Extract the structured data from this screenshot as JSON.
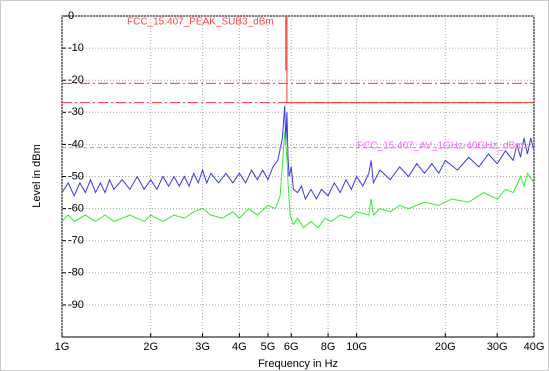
{
  "chart_data": {
    "type": "line",
    "xlabel": "Frequency in Hz",
    "ylabel": "Level in dBm",
    "xscale": "log",
    "grid": true,
    "xlim": [
      1000000000.0,
      40000000000.0
    ],
    "ylim": [
      -100,
      0
    ],
    "xticks": [
      {
        "value": 1000000000.0,
        "label": "1G"
      },
      {
        "value": 2000000000.0,
        "label": "2G"
      },
      {
        "value": 3000000000.0,
        "label": "3G"
      },
      {
        "value": 4000000000.0,
        "label": "4G"
      },
      {
        "value": 5000000000.0,
        "label": "5G"
      },
      {
        "value": 6000000000.0,
        "label": "6G"
      },
      {
        "value": 8000000000.0,
        "label": "8G"
      },
      {
        "value": 10000000000.0,
        "label": "10G"
      },
      {
        "value": 20000000000.0,
        "label": "20G"
      },
      {
        "value": 30000000000.0,
        "label": "30G"
      },
      {
        "value": 40000000000.0,
        "label": "40G"
      }
    ],
    "yticks": [
      0,
      -10,
      -20,
      -30,
      -40,
      -50,
      -60,
      -70,
      -80,
      -90
    ],
    "annotations": [
      {
        "text": "FCC_15.407_PEAK_SUB3_dBm",
        "color": "#ff4444"
      },
      {
        "text": "FCC_15.407_AV_1GHz-40GHz_dBm",
        "color": "#ff66ff"
      }
    ],
    "series": [
      {
        "color": "#3a3ae0",
        "dash": "solid",
        "x": [
          1000000000.0,
          1050000000.0,
          1100000000.0,
          1150000000.0,
          1200000000.0,
          1250000000.0,
          1300000000.0,
          1350000000.0,
          1400000000.0,
          1450000000.0,
          1500000000.0,
          1600000000.0,
          1700000000.0,
          1800000000.0,
          1900000000.0,
          2000000000.0,
          2100000000.0,
          2200000000.0,
          2300000000.0,
          2400000000.0,
          2500000000.0,
          2600000000.0,
          2700000000.0,
          2800000000.0,
          2900000000.0,
          3000000000.0,
          3100000000.0,
          3200000000.0,
          3400000000.0,
          3600000000.0,
          3800000000.0,
          4000000000.0,
          4200000000.0,
          4400000000.0,
          4600000000.0,
          4800000000.0,
          5000000000.0,
          5200000000.0,
          5400000000.0,
          5600000000.0,
          5700000000.0,
          5750000000.0,
          5800000000.0,
          5850000000.0,
          5900000000.0,
          6000000000.0,
          6100000000.0,
          6300000000.0,
          6500000000.0,
          6700000000.0,
          7000000000.0,
          7300000000.0,
          7600000000.0,
          8000000000.0,
          8400000000.0,
          8800000000.0,
          9200000000.0,
          9600000000.0,
          10000000000.0,
          10500000000.0,
          11000000000.0,
          11200000000.0,
          11400000000.0,
          12000000000.0,
          13000000000.0,
          14000000000.0,
          15000000000.0,
          16000000000.0,
          17000000000.0,
          18000000000.0,
          19000000000.0,
          20000000000.0,
          22000000000.0,
          24000000000.0,
          26000000000.0,
          28000000000.0,
          30000000000.0,
          32000000000.0,
          34000000000.0,
          35000000000.0,
          36000000000.0,
          37000000000.0,
          38000000000.0,
          39000000000.0,
          40000000000.0
        ],
        "values": [
          -55,
          -52,
          -56,
          -52,
          -55,
          -51,
          -55,
          -52,
          -55,
          -51,
          -54,
          -51,
          -54,
          -50,
          -54,
          -51,
          -54,
          -50,
          -53,
          -50,
          -53,
          -50,
          -53,
          -49,
          -52,
          -48,
          -52,
          -49,
          -52,
          -49,
          -52,
          -49,
          -52,
          -48,
          -51,
          -48,
          -51,
          -47,
          -45,
          -38,
          -28,
          -40,
          -30,
          -44,
          -50,
          -47,
          -54,
          -55,
          -53,
          -57,
          -54,
          -57,
          -54,
          -56,
          -52,
          -55,
          -51,
          -54,
          -50,
          -53,
          -49,
          -45,
          -52,
          -48,
          -51,
          -47,
          -50,
          -46,
          -49,
          -46,
          -49,
          -45,
          -48,
          -44,
          -47,
          -43,
          -46,
          -42,
          -45,
          -40,
          -44,
          -38,
          -43,
          -38,
          -42
        ]
      },
      {
        "color": "#33ee33",
        "dash": "solid",
        "x": [
          1000000000.0,
          1050000000.0,
          1100000000.0,
          1200000000.0,
          1300000000.0,
          1400000000.0,
          1500000000.0,
          1700000000.0,
          1900000000.0,
          2000000000.0,
          2200000000.0,
          2400000000.0,
          2600000000.0,
          2800000000.0,
          3000000000.0,
          3200000000.0,
          3500000000.0,
          3800000000.0,
          4000000000.0,
          4300000000.0,
          4600000000.0,
          5000000000.0,
          5300000000.0,
          5500000000.0,
          5700000000.0,
          5800000000.0,
          5850000000.0,
          5950000000.0,
          6100000000.0,
          6300000000.0,
          6600000000.0,
          7000000000.0,
          7400000000.0,
          7800000000.0,
          8200000000.0,
          8800000000.0,
          9500000000.0,
          10000000000.0,
          11000000000.0,
          11200000000.0,
          11400000000.0,
          12000000000.0,
          13000000000.0,
          14000000000.0,
          15000000000.0,
          17000000000.0,
          19000000000.0,
          21000000000.0,
          24000000000.0,
          27000000000.0,
          30000000000.0,
          32000000000.0,
          34000000000.0,
          36000000000.0,
          37000000000.0,
          38000000000.0,
          40000000000.0
        ],
        "values": [
          -64,
          -62,
          -64,
          -62,
          -64,
          -62,
          -64,
          -62,
          -64,
          -62,
          -64,
          -62,
          -63,
          -61,
          -60,
          -62,
          -63,
          -61,
          -63,
          -60,
          -62,
          -59,
          -60,
          -56,
          -36,
          -44,
          -52,
          -62,
          -65,
          -63,
          -66,
          -64,
          -66,
          -63,
          -64,
          -62,
          -63,
          -61,
          -62,
          -57,
          -62,
          -60,
          -61,
          -59,
          -60,
          -58,
          -59,
          -57,
          -58,
          -55,
          -57,
          -54,
          -55,
          -50,
          -53,
          -49,
          -52
        ]
      },
      {
        "color": "#ff3333",
        "dash": "solid",
        "x": [
          5750000000.0,
          5750000000.0,
          5780000000.0,
          5800000000.0,
          5800000000.0,
          40000000000.0
        ],
        "values": [
          0,
          -17,
          null,
          0,
          -27,
          -27
        ]
      },
      {
        "color": "#ff3333",
        "dash": "dashdot",
        "x": [
          1000000000.0,
          40000000000.0
        ],
        "values": [
          -21,
          -21
        ]
      },
      {
        "color": "#ff3333",
        "dash": "dashdot",
        "x": [
          1000000000.0,
          40000000000.0
        ],
        "values": [
          -27,
          -27
        ]
      },
      {
        "color": "#ff66ff",
        "dash": "dashed",
        "x": [
          1000000000.0,
          40000000000.0
        ],
        "values": [
          -41,
          -41
        ]
      }
    ]
  }
}
